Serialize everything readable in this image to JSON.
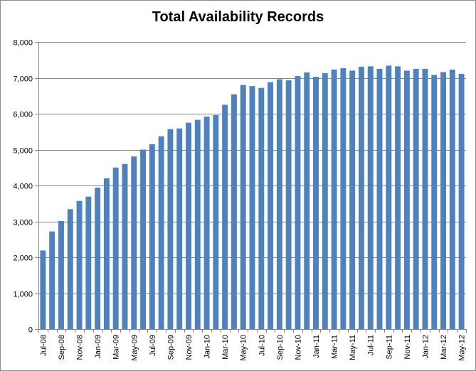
{
  "chart_data": {
    "type": "bar",
    "title": "Total Availability Records",
    "xlabel": "",
    "ylabel": "",
    "ylim": [
      0,
      8000
    ],
    "yticks": [
      0,
      1000,
      2000,
      3000,
      4000,
      5000,
      6000,
      7000,
      8000
    ],
    "ytick_labels": [
      "0",
      "1,000",
      "2,000",
      "3,000",
      "4,000",
      "5,000",
      "6,000",
      "7,000",
      "8,000"
    ],
    "grid": true,
    "legend": "none",
    "bar_color": "#4f81bd",
    "categories": [
      "Jul-08",
      "Aug-08",
      "Sep-08",
      "Oct-08",
      "Nov-08",
      "Dec-08",
      "Jan-09",
      "Feb-09",
      "Mar-09",
      "Apr-09",
      "May-09",
      "Jun-09",
      "Jul-09",
      "Aug-09",
      "Sep-09",
      "Oct-09",
      "Nov-09",
      "Dec-09",
      "Jan-10",
      "Feb-10",
      "Mar-10",
      "Apr-10",
      "May-10",
      "Jun-10",
      "Jul-10",
      "Aug-10",
      "Sep-10",
      "Oct-10",
      "Nov-10",
      "Dec-10",
      "Jan-11",
      "Feb-11",
      "Mar-11",
      "Apr-11",
      "May-11",
      "Jun-11",
      "Jul-11",
      "Aug-11",
      "Sep-11",
      "Oct-11",
      "Nov-11",
      "Dec-11",
      "Jan-12",
      "Feb-12",
      "Mar-12",
      "Apr-12",
      "May-12"
    ],
    "xtick_labels": [
      "Jul-08",
      "Sep-08",
      "Nov-08",
      "Jan-09",
      "Mar-09",
      "May-09",
      "Jul-09",
      "Sep-09",
      "Nov-09",
      "Jan-10",
      "Mar-10",
      "May-10",
      "Jul-10",
      "Sep-10",
      "Nov-10",
      "Jan-11",
      "Mar-11",
      "May-11",
      "Jul-11",
      "Sep-11",
      "Nov-11",
      "Jan-12",
      "Mar-12",
      "May-12"
    ],
    "values": [
      2190,
      2720,
      3010,
      3340,
      3570,
      3690,
      3940,
      4200,
      4500,
      4600,
      4810,
      5000,
      5150,
      5370,
      5570,
      5590,
      5750,
      5830,
      5920,
      5960,
      6250,
      6540,
      6800,
      6770,
      6720,
      6880,
      6960,
      6930,
      7050,
      7150,
      7030,
      7130,
      7230,
      7270,
      7200,
      7310,
      7320,
      7250,
      7340,
      7320,
      7200,
      7250,
      7250,
      7080,
      7160,
      7230,
      7110
    ]
  }
}
